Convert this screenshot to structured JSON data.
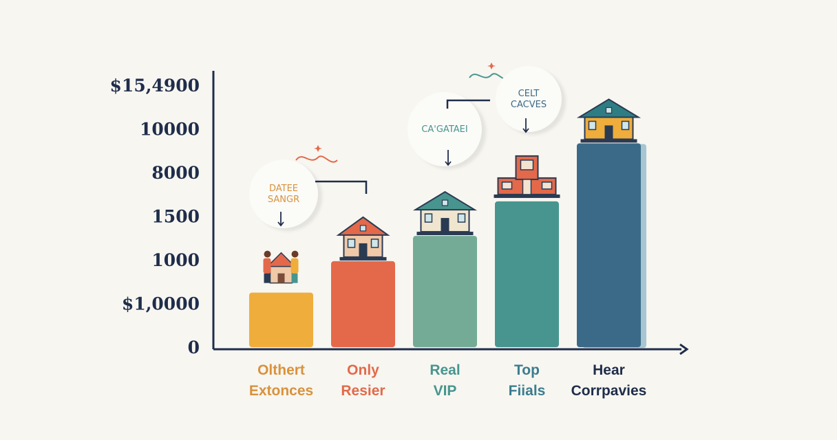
{
  "chart_data": {
    "type": "bar",
    "title": "",
    "xlabel": "",
    "ylabel": "",
    "y_tick_labels": [
      "0",
      "$1,0000",
      "1000",
      "1500",
      "8000",
      "10000",
      "$15,4900"
    ],
    "ylim": [
      0,
      6
    ],
    "grid": false,
    "legend": "none",
    "categories": [
      {
        "line1": "Olthert",
        "line2": "Extonces"
      },
      {
        "line1": "Only",
        "line2": "Resier"
      },
      {
        "line1": "Real",
        "line2": "VIP"
      },
      {
        "line1": "Top",
        "line2": "Fiials"
      },
      {
        "line1": "Hear",
        "line2": "Corrpavies"
      }
    ],
    "values": [
      1.25,
      1.97,
      2.55,
      3.34,
      4.67
    ],
    "colors": [
      "#efad3c",
      "#e3694a",
      "#74ab97",
      "#48958f",
      "#3a6a88"
    ],
    "icons": [
      "people-house-icon",
      "red-house-icon",
      "green-house-icon",
      "red-building-icon",
      "yellow-house-icon"
    ],
    "annotations": [
      {
        "name": "callout-date-range",
        "lines": [
          "DATEE",
          "SANGR"
        ],
        "color": "#d9923c",
        "category": 0
      },
      {
        "name": "callout-catalog",
        "lines": [
          "CA'GATAEI"
        ],
        "color": "#48958f",
        "category": 2
      },
      {
        "name": "callout-celt",
        "lines": [
          "CELT",
          "CACVES"
        ],
        "color": "#3a6a88",
        "category": 3
      }
    ]
  }
}
